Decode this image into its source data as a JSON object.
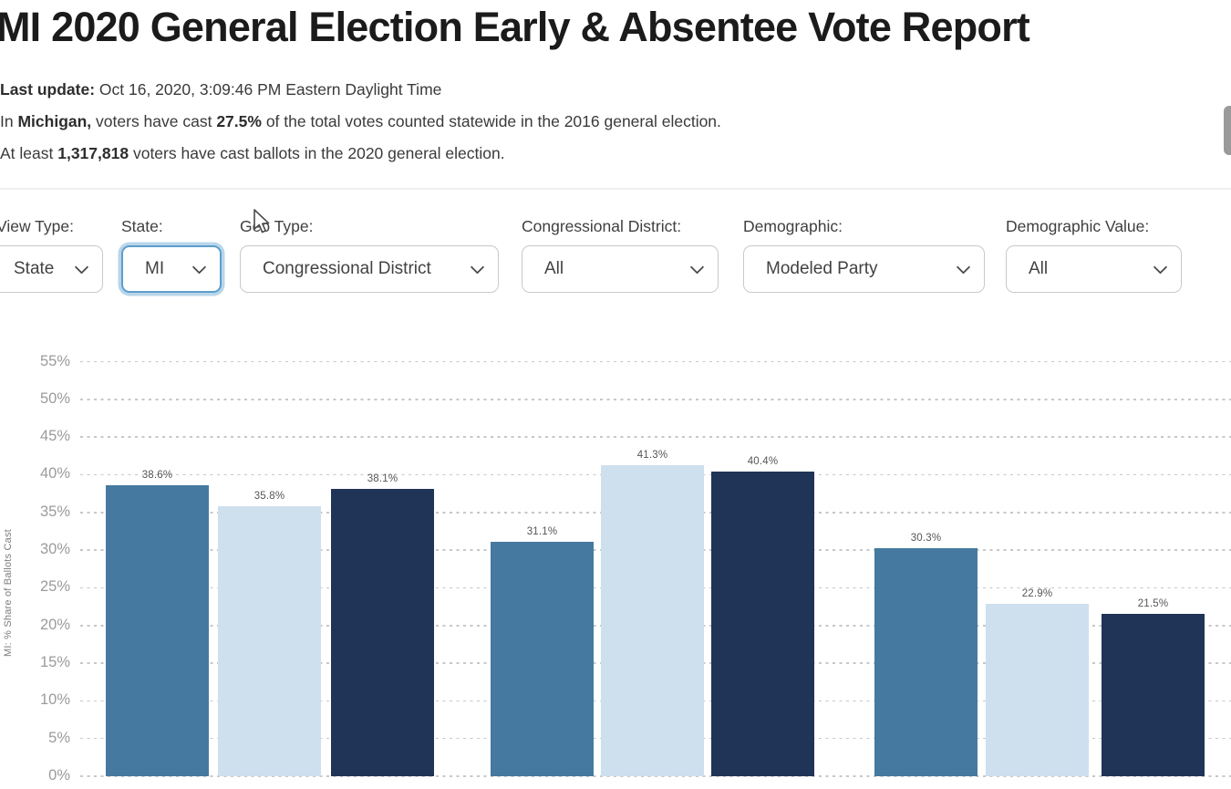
{
  "header": {
    "title": "MI 2020 General Election Early & Absentee Vote Report",
    "last_update": {
      "label": "Last update:",
      "value": " Oct 16, 2020, 3:09:46 PM Eastern Daylight Time"
    },
    "summary_line_1": {
      "pre": "In ",
      "state_bold": "Michigan,",
      "mid": " voters have cast ",
      "pct_bold": "27.5%",
      "post": " of the total votes counted statewide in the 2016 general election."
    },
    "summary_line_2": {
      "pre": "At least ",
      "count_bold": "1,317,818",
      "post": " voters have cast ballots in the 2020 general election."
    }
  },
  "filters": [
    {
      "label": "View Type:",
      "value": "State",
      "focused": false
    },
    {
      "label": "State:",
      "value": "MI",
      "focused": true
    },
    {
      "label": "Geo Type:",
      "value": "Congressional District",
      "focused": false
    },
    {
      "label": "Congressional District:",
      "value": "All",
      "focused": false
    },
    {
      "label": "Demographic:",
      "value": "Modeled Party",
      "focused": false
    },
    {
      "label": "Demographic Value:",
      "value": "All",
      "focused": false
    }
  ],
  "icons": {
    "chevron": "chevron-down-icon",
    "cursor": "mouse-cursor-icon"
  },
  "colors": {
    "bar_steel_blue": "#4579A0",
    "bar_light_blue": "#CEDFEE",
    "bar_navy": "#1F3456",
    "focus_ring": "#5D9ECB",
    "gridline": "#C7C7C7",
    "tick_text": "#9B9B9B"
  },
  "chart_data": {
    "type": "bar",
    "title": "",
    "xlabel": "",
    "ylabel": "MI: % Share of Ballots Cast",
    "ylim": [
      0,
      57
    ],
    "yticks": [
      0,
      5,
      10,
      15,
      20,
      25,
      30,
      35,
      40,
      45,
      50,
      55
    ],
    "ytick_format": "percent",
    "grid": "horizontal-dotted",
    "legend_position": "none",
    "categories": [
      "",
      "",
      ""
    ],
    "series": [
      {
        "name": "series-1-steel-blue",
        "color": "#4579A0",
        "values": [
          38.6,
          31.1,
          30.3
        ]
      },
      {
        "name": "series-2-light-blue",
        "color": "#CEDFEE",
        "values": [
          35.8,
          41.3,
          22.9
        ]
      },
      {
        "name": "series-3-navy",
        "color": "#1F3456",
        "values": [
          38.1,
          40.4,
          21.5
        ]
      }
    ],
    "value_labels": [
      "38.6%",
      "35.8%",
      "38.1%",
      "31.1%",
      "41.3%",
      "40.4%",
      "30.3%",
      "22.9%",
      "21.5%"
    ]
  }
}
